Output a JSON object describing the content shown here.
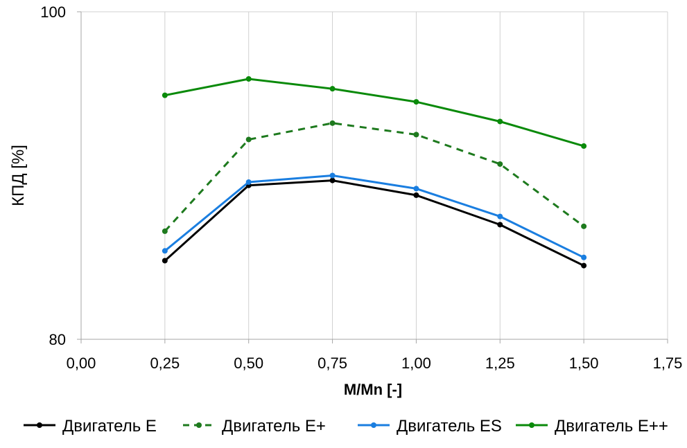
{
  "chart_data": {
    "type": "line",
    "title": "",
    "xlabel": "M/Mn [-]",
    "ylabel": "КПД [%]",
    "xlim": [
      0.0,
      1.75
    ],
    "ylim": [
      80,
      100
    ],
    "xticks": [
      "0,00",
      "0,25",
      "0,50",
      "0,75",
      "1,00",
      "1,25",
      "1,50",
      "1,75"
    ],
    "yticks": [
      "100",
      "80"
    ],
    "x": [
      0.25,
      0.5,
      0.75,
      1.0,
      1.25,
      1.5
    ],
    "grid": true,
    "legend_position": "bottom",
    "series": [
      {
        "name": "Двигатель E",
        "color": "#000000",
        "dash": "solid",
        "values": [
          84.8,
          89.4,
          89.7,
          88.8,
          87.0,
          84.5
        ]
      },
      {
        "name": "Двигатель E+",
        "color": "#1e7a1e",
        "dash": "dashed",
        "values": [
          86.6,
          92.2,
          93.2,
          92.5,
          90.7,
          86.9
        ]
      },
      {
        "name": "Двигатель ES",
        "color": "#1a7ee0",
        "dash": "solid",
        "values": [
          85.4,
          89.6,
          90.0,
          89.2,
          87.5,
          85.0
        ]
      },
      {
        "name": "Двигатель E++",
        "color": "#0a8a0a",
        "dash": "solid",
        "values": [
          94.9,
          95.9,
          95.3,
          94.5,
          93.3,
          91.8
        ]
      }
    ]
  }
}
